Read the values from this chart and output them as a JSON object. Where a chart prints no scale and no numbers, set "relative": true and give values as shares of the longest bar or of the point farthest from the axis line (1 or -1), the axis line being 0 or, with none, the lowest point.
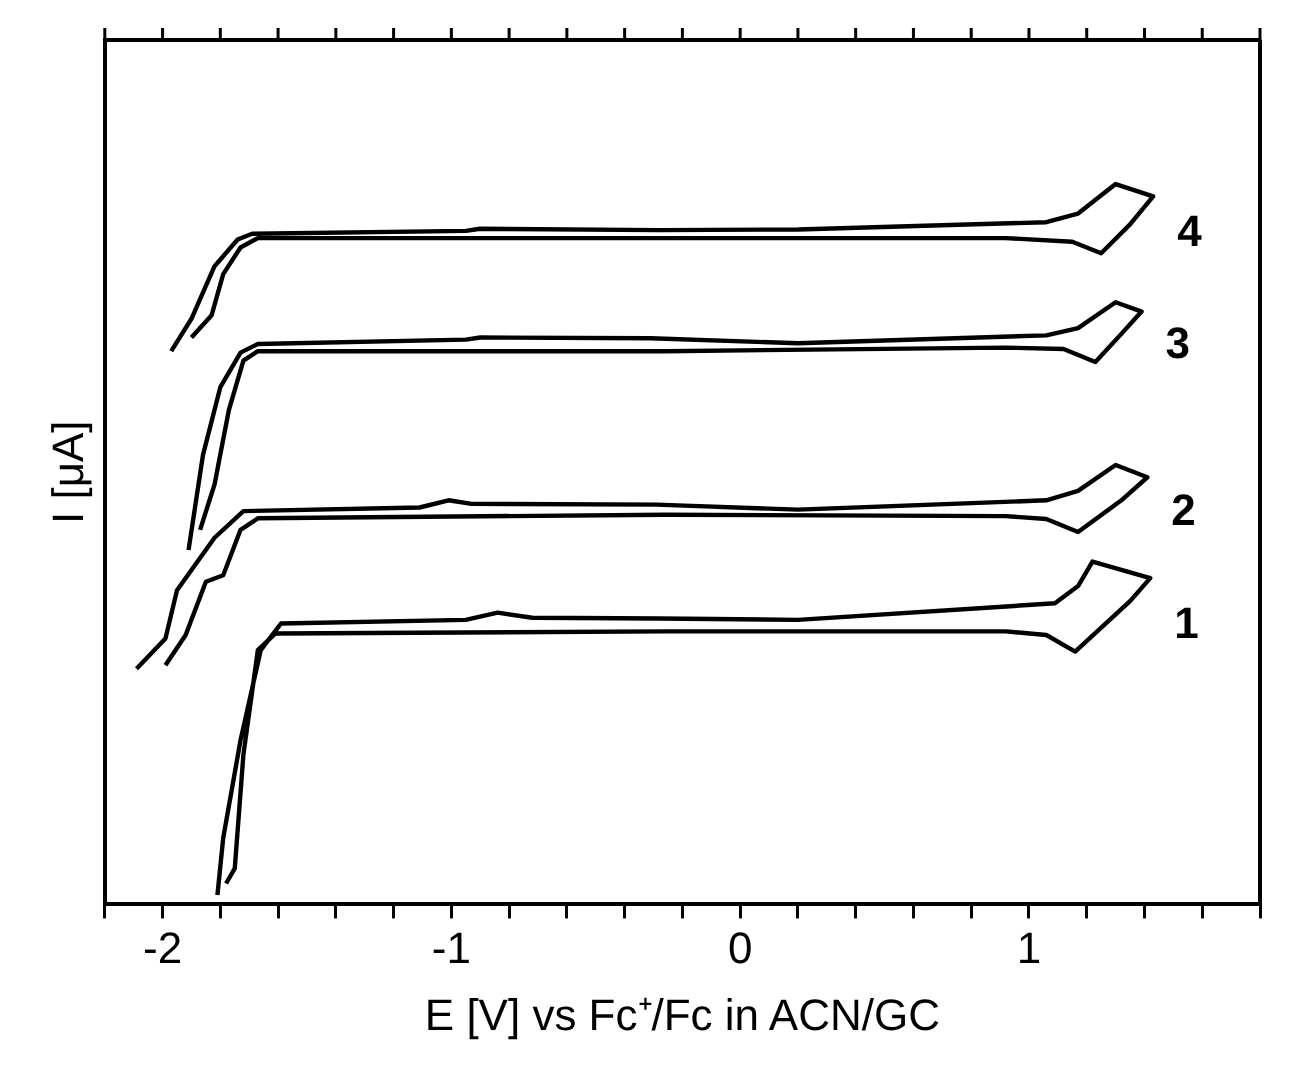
{
  "chart_data": {
    "type": "line",
    "relative": true,
    "xlabel": "E [V] vs Fc⁺/Fc in ACN/GC",
    "ylabel": "I [μA]",
    "xlim": [
      -2.2,
      1.8
    ],
    "xticks": [
      {
        "value": -2.2,
        "label": null
      },
      -2,
      {
        "value": -1.8,
        "label": null
      },
      {
        "value": -1.6,
        "label": null
      },
      {
        "value": -1.4,
        "label": null
      },
      {
        "value": -1.2,
        "label": null
      },
      -1,
      {
        "value": -0.8,
        "label": null
      },
      {
        "value": -0.6,
        "label": null
      },
      {
        "value": -0.4,
        "label": null
      },
      {
        "value": -0.2,
        "label": null
      },
      0,
      {
        "value": 0.2,
        "label": null
      },
      {
        "value": 0.4,
        "label": null
      },
      {
        "value": 0.6,
        "label": null
      },
      {
        "value": 0.8,
        "label": null
      },
      1,
      {
        "value": 1.2,
        "label": null
      },
      {
        "value": 1.4,
        "label": null
      },
      {
        "value": 1.6,
        "label": null
      },
      {
        "value": 1.8,
        "label": null
      }
    ],
    "grid": false,
    "legend": false,
    "marker": "none",
    "line_style": "solid",
    "series": [
      {
        "name": "1",
        "color": "#000000",
        "x": [
          -1.81,
          -1.79,
          -1.73,
          -1.66,
          -1.59,
          -0.95,
          -0.84,
          -0.72,
          -0.28,
          0.2,
          1.09,
          1.17,
          1.22,
          1.42,
          1.35,
          1.16,
          1.06,
          0.92,
          -0.26,
          -1.61,
          -1.67,
          -1.72,
          -1.75,
          -1.78
        ],
        "values": [
          0.013,
          0.092,
          0.228,
          0.353,
          0.39,
          0.395,
          0.405,
          0.398,
          0.397,
          0.395,
          0.418,
          0.442,
          0.476,
          0.453,
          0.421,
          0.351,
          0.374,
          0.379,
          0.379,
          0.376,
          0.353,
          0.208,
          0.05,
          0.029
        ]
      },
      {
        "name": "2",
        "color": "#000000",
        "x": [
          -2.09,
          -1.99,
          -1.95,
          -1.82,
          -1.72,
          -1.11,
          -1.01,
          -0.93,
          -0.29,
          0.2,
          1.06,
          1.17,
          1.3,
          1.41,
          1.32,
          1.17,
          1.06,
          0.92,
          -0.26,
          -1.67,
          -1.73,
          -1.79,
          -1.85,
          -1.92,
          -1.99
        ],
        "values": [
          0.327,
          0.369,
          0.436,
          0.509,
          0.546,
          0.551,
          0.561,
          0.556,
          0.555,
          0.548,
          0.561,
          0.574,
          0.61,
          0.593,
          0.561,
          0.517,
          0.535,
          0.539,
          0.541,
          0.536,
          0.52,
          0.457,
          0.448,
          0.374,
          0.332
        ]
      },
      {
        "name": "3",
        "color": "#000000",
        "x": [
          -1.91,
          -1.86,
          -1.8,
          -1.73,
          -1.67,
          -0.95,
          -0.9,
          -0.31,
          0.2,
          1.06,
          1.17,
          1.3,
          1.39,
          1.32,
          1.23,
          1.12,
          0.92,
          -0.26,
          -1.67,
          -1.72,
          -1.77,
          -1.82,
          -1.87
        ],
        "values": [
          0.492,
          0.624,
          0.718,
          0.766,
          0.778,
          0.784,
          0.787,
          0.786,
          0.779,
          0.79,
          0.8,
          0.836,
          0.823,
          0.792,
          0.753,
          0.771,
          0.773,
          0.768,
          0.768,
          0.755,
          0.687,
          0.583,
          0.52
        ]
      },
      {
        "name": "4",
        "color": "#000000",
        "x": [
          -1.97,
          -1.9,
          -1.82,
          -1.74,
          -1.69,
          -0.95,
          -0.9,
          -0.28,
          0.2,
          1.06,
          1.17,
          1.3,
          1.43,
          1.35,
          1.25,
          1.15,
          0.92,
          -0.26,
          -1.67,
          -1.73,
          -1.79,
          -1.83,
          -1.9
        ],
        "values": [
          0.768,
          0.813,
          0.886,
          0.923,
          0.931,
          0.935,
          0.938,
          0.936,
          0.937,
          0.947,
          0.959,
          1,
          0.983,
          0.944,
          0.904,
          0.92,
          0.925,
          0.925,
          0.925,
          0.912,
          0.875,
          0.818,
          0.787
        ]
      }
    ]
  }
}
